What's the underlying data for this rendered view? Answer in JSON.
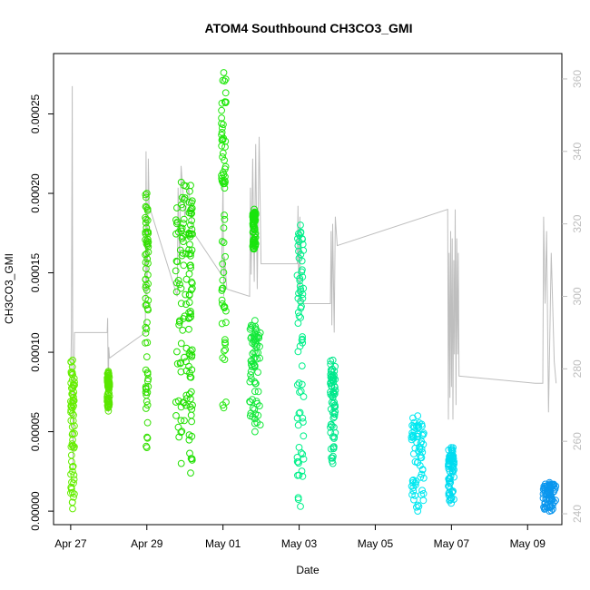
{
  "chart_data": {
    "type": "scatter",
    "title": "ATOM4 Southbound CH3CO3_GMI",
    "xlabel": "Date",
    "ylabel": "CH3CO3_GMI",
    "x_tick_labels": [
      "Apr 27",
      "Apr 29",
      "May 01",
      "May 03",
      "May 05",
      "May 07",
      "May 09"
    ],
    "x_tick_days": [
      0,
      2,
      4,
      6,
      8,
      10,
      12
    ],
    "xlim_days": [
      -0.45,
      12.9
    ],
    "y_tick_labels": [
      "0.00000",
      "0.00005",
      "0.00010",
      "0.00015",
      "0.00020",
      "0.00025"
    ],
    "y_tick_values": [
      0,
      5e-05,
      0.0001,
      0.00015,
      0.0002,
      0.00025
    ],
    "ylim": [
      -8.5e-06,
      0.000288
    ],
    "y2_tick_labels": [
      "240",
      "260",
      "280",
      "300",
      "320",
      "340",
      "360"
    ],
    "y2_tick_values": [
      240,
      260,
      280,
      300,
      320,
      340,
      360
    ],
    "y2lim": [
      237,
      367
    ],
    "grid": false,
    "legend": "none",
    "colors": {
      "secondary_line": "#bebebe",
      "frame": "#000000"
    },
    "segments": [
      {
        "day": 0.0,
        "day_end": 0.1,
        "ymin": 1.5e-06,
        "ymax": 9.5e-05,
        "color": "#66ee00"
      },
      {
        "day": 0.96,
        "day_end": 1.02,
        "ymin": 6.3e-05,
        "ymax": 8.8e-05,
        "color": "#5ae600"
      },
      {
        "day": 1.96,
        "day_end": 2.04,
        "ymin": 4e-05,
        "ymax": 0.0002,
        "color": "#33e000"
      },
      {
        "day": 2.76,
        "day_end": 3.05,
        "ymin": 3e-05,
        "ymax": 0.000207,
        "color": "#22e000"
      },
      {
        "day": 3.1,
        "day_end": 3.2,
        "ymin": 2.4e-05,
        "ymax": 0.000205,
        "color": "#1ee000"
      },
      {
        "day": 3.96,
        "day_end": 4.08,
        "ymin": 6.5e-05,
        "ymax": 0.000276,
        "color": "#22e80e"
      },
      {
        "day": 4.7,
        "day_end": 4.98,
        "ymin": 5e-05,
        "ymax": 0.00012,
        "color": "#14e83a"
      },
      {
        "day": 4.78,
        "day_end": 4.86,
        "ymin": 0.000165,
        "ymax": 0.00019,
        "color": "#19e40e"
      },
      {
        "day": 5.95,
        "day_end": 6.12,
        "ymin": 3e-06,
        "ymax": 0.00018,
        "color": "#00f08a"
      },
      {
        "day": 6.82,
        "day_end": 6.95,
        "ymin": 3e-05,
        "ymax": 9.5e-05,
        "color": "#00e88c"
      },
      {
        "day": 8.95,
        "day_end": 9.28,
        "ymin": 0.0,
        "ymax": 6e-05,
        "color": "#00e8f0"
      },
      {
        "day": 9.92,
        "day_end": 10.07,
        "ymin": 5e-06,
        "ymax": 4e-05,
        "color": "#00dcf0"
      },
      {
        "day": 12.4,
        "day_end": 12.75,
        "ymin": 0.0,
        "ymax": 1.8e-05,
        "color": "#0a96ee"
      }
    ],
    "secondary_series": [
      [
        0.0,
        279
      ],
      [
        0.02,
        290
      ],
      [
        0.04,
        358
      ],
      [
        0.05,
        300
      ],
      [
        0.06,
        252
      ],
      [
        0.1,
        290
      ],
      [
        0.5,
        290
      ],
      [
        0.96,
        290
      ],
      [
        0.97,
        294
      ],
      [
        0.98,
        282
      ],
      [
        0.99,
        268
      ],
      [
        1.0,
        286
      ],
      [
        1.02,
        283
      ],
      [
        1.96,
        290
      ],
      [
        1.98,
        340
      ],
      [
        2.0,
        300
      ],
      [
        2.02,
        312
      ],
      [
        2.04,
        338
      ],
      [
        2.06,
        325
      ],
      [
        2.8,
        300
      ],
      [
        2.82,
        330
      ],
      [
        2.86,
        310
      ],
      [
        2.9,
        336
      ],
      [
        3.0,
        322
      ],
      [
        3.1,
        330
      ],
      [
        3.2,
        318
      ],
      [
        3.96,
        306
      ],
      [
        3.98,
        316
      ],
      [
        4.0,
        332
      ],
      [
        4.02,
        300
      ],
      [
        4.04,
        311
      ],
      [
        4.1,
        302
      ],
      [
        4.7,
        300
      ],
      [
        4.72,
        330
      ],
      [
        4.74,
        306
      ],
      [
        4.78,
        338
      ],
      [
        4.82,
        304
      ],
      [
        4.86,
        342
      ],
      [
        4.9,
        302
      ],
      [
        4.95,
        344
      ],
      [
        5.0,
        309
      ],
      [
        5.95,
        309
      ],
      [
        5.97,
        325
      ],
      [
        5.99,
        298
      ],
      [
        6.0,
        311
      ],
      [
        6.02,
        322
      ],
      [
        6.04,
        300
      ],
      [
        6.1,
        298
      ],
      [
        6.82,
        298
      ],
      [
        6.84,
        318
      ],
      [
        6.86,
        292
      ],
      [
        6.88,
        320
      ],
      [
        6.92,
        290
      ],
      [
        6.95,
        322
      ],
      [
        7.0,
        314
      ],
      [
        9.9,
        324
      ],
      [
        9.92,
        266
      ],
      [
        9.94,
        312
      ],
      [
        9.96,
        272
      ],
      [
        9.98,
        318
      ],
      [
        10.0,
        275
      ],
      [
        10.02,
        316
      ],
      [
        10.04,
        266
      ],
      [
        10.06,
        310
      ],
      [
        10.08,
        284
      ],
      [
        10.1,
        324
      ],
      [
        10.12,
        270
      ],
      [
        10.14,
        316
      ],
      [
        10.16,
        284
      ],
      [
        10.18,
        312
      ],
      [
        10.2,
        278
      ],
      [
        12.2,
        276
      ],
      [
        12.4,
        276
      ],
      [
        12.42,
        322
      ],
      [
        12.46,
        298
      ],
      [
        12.5,
        318
      ],
      [
        12.55,
        268
      ],
      [
        12.62,
        312
      ],
      [
        12.7,
        282
      ],
      [
        12.75,
        276
      ]
    ]
  }
}
